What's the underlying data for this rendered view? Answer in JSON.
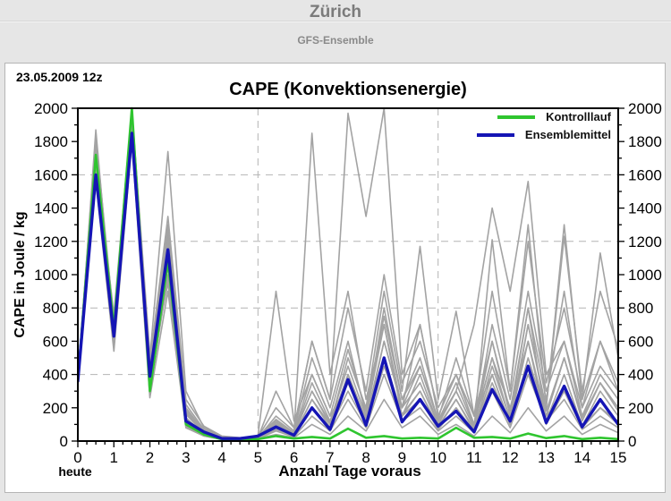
{
  "header": {
    "title": "Zürich",
    "subtitle": "GFS-Ensemble"
  },
  "panel": {
    "run_date": "23.05.2009 12z"
  },
  "chart_data": {
    "type": "line",
    "title": "CAPE (Konvektionsenergie)",
    "xlabel": "Anzahl Tage voraus",
    "ylabel": "CAPE in Joule / kg",
    "today_label": "heute",
    "xlim": [
      0,
      15
    ],
    "ylim": [
      0,
      2000
    ],
    "x_ticks": [
      0,
      1,
      2,
      3,
      4,
      5,
      6,
      7,
      8,
      9,
      10,
      11,
      12,
      13,
      14,
      15
    ],
    "y_ticks": [
      0,
      200,
      400,
      600,
      800,
      1000,
      1200,
      1400,
      1600,
      1800,
      2000
    ],
    "x_minor_step": 0.25,
    "y_minor_step": 100,
    "grid": {
      "color": "#b4b4b4",
      "y_dashed": [
        400,
        800,
        1200,
        1600
      ],
      "x_dashed": [
        5,
        10
      ]
    },
    "legend_position": "top-right",
    "legend": [
      {
        "label": "Kontrolllauf",
        "color": "#2fc52f"
      },
      {
        "label": "Ensemblemittel",
        "color": "#1515b5"
      }
    ],
    "x": [
      0,
      0.5,
      1,
      1.5,
      2,
      2.5,
      3,
      3.5,
      4,
      4.5,
      5,
      5.5,
      6,
      6.5,
      7,
      7.5,
      8,
      8.5,
      9,
      9.5,
      10,
      10.5,
      11,
      11.5,
      12,
      12.5,
      13,
      13.5,
      14,
      14.5,
      15
    ],
    "series": [
      {
        "name": "member-01",
        "color": "#a3a3a3",
        "width": 1.6,
        "values": [
          350,
          1870,
          640,
          1980,
          420,
          1210,
          200,
          60,
          20,
          15,
          20,
          100,
          50,
          1850,
          400,
          900,
          250,
          700,
          150,
          400,
          100,
          300,
          80,
          600,
          150,
          800,
          120,
          400,
          90,
          300,
          150
        ]
      },
      {
        "name": "member-02",
        "color": "#a3a3a3",
        "width": 1.6,
        "values": [
          380,
          1800,
          700,
          1950,
          500,
          1740,
          300,
          80,
          25,
          20,
          30,
          900,
          120,
          400,
          150,
          350,
          100,
          600,
          200,
          700,
          150,
          400,
          100,
          500,
          200,
          600,
          150,
          500,
          120,
          350,
          200
        ]
      },
      {
        "name": "member-03",
        "color": "#a3a3a3",
        "width": 1.6,
        "values": [
          330,
          1750,
          600,
          1900,
          350,
          1300,
          120,
          40,
          10,
          10,
          15,
          80,
          30,
          250,
          80,
          400,
          120,
          500,
          150,
          300,
          80,
          250,
          60,
          400,
          100,
          700,
          200,
          1230,
          300,
          900,
          560
        ]
      },
      {
        "name": "member-04",
        "color": "#a3a3a3",
        "width": 1.6,
        "values": [
          400,
          1700,
          760,
          1990,
          520,
          1150,
          180,
          50,
          15,
          10,
          20,
          150,
          60,
          500,
          200,
          600,
          150,
          800,
          250,
          500,
          120,
          350,
          90,
          700,
          250,
          900,
          300,
          600,
          150,
          400,
          250
        ]
      },
      {
        "name": "member-05",
        "color": "#a3a3a3",
        "width": 1.6,
        "values": [
          360,
          1650,
          560,
          1850,
          300,
          1000,
          90,
          30,
          10,
          15,
          25,
          120,
          40,
          300,
          100,
          500,
          200,
          900,
          300,
          1170,
          250,
          780,
          150,
          400,
          100,
          500,
          150,
          300,
          80,
          200,
          100
        ]
      },
      {
        "name": "member-06",
        "color": "#a3a3a3",
        "width": 1.6,
        "values": [
          340,
          1600,
          620,
          1920,
          380,
          950,
          140,
          45,
          15,
          10,
          15,
          60,
          25,
          150,
          60,
          250,
          80,
          400,
          120,
          200,
          60,
          150,
          50,
          300,
          80,
          400,
          120,
          250,
          70,
          150,
          80
        ]
      },
      {
        "name": "member-07",
        "color": "#a3a3a3",
        "width": 1.6,
        "values": [
          390,
          1780,
          680,
          1960,
          450,
          1250,
          220,
          70,
          20,
          15,
          20,
          100,
          40,
          350,
          120,
          450,
          150,
          700,
          200,
          450,
          120,
          300,
          700,
          1400,
          900,
          1560,
          400,
          600,
          200,
          450,
          300
        ]
      },
      {
        "name": "member-08",
        "color": "#a3a3a3",
        "width": 1.6,
        "values": [
          370,
          1560,
          540,
          1800,
          260,
          900,
          80,
          30,
          10,
          10,
          15,
          40,
          20,
          100,
          40,
          150,
          60,
          250,
          80,
          150,
          40,
          100,
          30,
          150,
          50,
          200,
          60,
          150,
          40,
          100,
          50
        ]
      },
      {
        "name": "member-09",
        "color": "#a3a3a3",
        "width": 1.6,
        "values": [
          350,
          1720,
          660,
          1880,
          400,
          1100,
          160,
          50,
          15,
          10,
          20,
          300,
          80,
          600,
          250,
          800,
          300,
          1000,
          350,
          600,
          200,
          400,
          150,
          900,
          300,
          1200,
          350,
          800,
          250,
          600,
          350
        ]
      },
      {
        "name": "member-10",
        "color": "#a3a3a3",
        "width": 1.6,
        "values": [
          380,
          1830,
          720,
          2000,
          480,
          1350,
          250,
          90,
          30,
          20,
          25,
          200,
          80,
          600,
          250,
          1970,
          1350,
          2000,
          400,
          700,
          150,
          400,
          100,
          500,
          120,
          600,
          100,
          300,
          80,
          200,
          100
        ]
      },
      {
        "name": "member-11",
        "color": "#a3a3a3",
        "width": 1.6,
        "values": [
          360,
          1680,
          600,
          1940,
          340,
          1050,
          110,
          35,
          10,
          10,
          15,
          70,
          30,
          200,
          80,
          300,
          100,
          450,
          150,
          250,
          70,
          200,
          60,
          350,
          100,
          450,
          130,
          300,
          90,
          200,
          120
        ]
      },
      {
        "name": "member-12",
        "color": "#a3a3a3",
        "width": 1.6,
        "values": [
          340,
          1760,
          640,
          1860,
          310,
          980,
          100,
          40,
          15,
          10,
          20,
          90,
          35,
          250,
          100,
          400,
          130,
          600,
          200,
          350,
          100,
          300,
          80,
          1210,
          300,
          1300,
          200,
          1300,
          250,
          1130,
          500
        ]
      },
      {
        "name": "member-13",
        "color": "#a3a3a3",
        "width": 1.6,
        "values": [
          390,
          1620,
          580,
          1900,
          430,
          1200,
          170,
          55,
          20,
          15,
          25,
          130,
          50,
          400,
          150,
          550,
          180,
          750,
          250,
          450,
          130,
          500,
          150,
          600,
          180,
          800,
          250,
          900,
          200,
          600,
          300
        ]
      },
      {
        "name": "member-14",
        "color": "#a3a3a3",
        "width": 1.6,
        "values": [
          370,
          1590,
          700,
          1970,
          470,
          1280,
          190,
          60,
          20,
          10,
          15,
          110,
          45,
          300,
          110,
          350,
          120,
          500,
          160,
          300,
          90,
          250,
          70,
          450,
          130,
          700,
          180,
          500,
          140,
          350,
          180
        ]
      },
      {
        "name": "Kontrolllauf",
        "color": "#2fc52f",
        "width": 2.6,
        "values": [
          370,
          1720,
          680,
          2000,
          300,
          1080,
          100,
          40,
          10,
          8,
          12,
          30,
          15,
          25,
          15,
          75,
          20,
          30,
          15,
          20,
          15,
          80,
          20,
          25,
          15,
          45,
          18,
          30,
          12,
          20,
          12
        ]
      },
      {
        "name": "Ensemblemittel",
        "color": "#1515b5",
        "width": 3.4,
        "values": [
          360,
          1600,
          630,
          1850,
          390,
          1150,
          120,
          55,
          15,
          15,
          30,
          85,
          35,
          200,
          70,
          370,
          95,
          500,
          115,
          250,
          90,
          180,
          55,
          310,
          120,
          450,
          110,
          330,
          85,
          250,
          100
        ]
      }
    ]
  }
}
